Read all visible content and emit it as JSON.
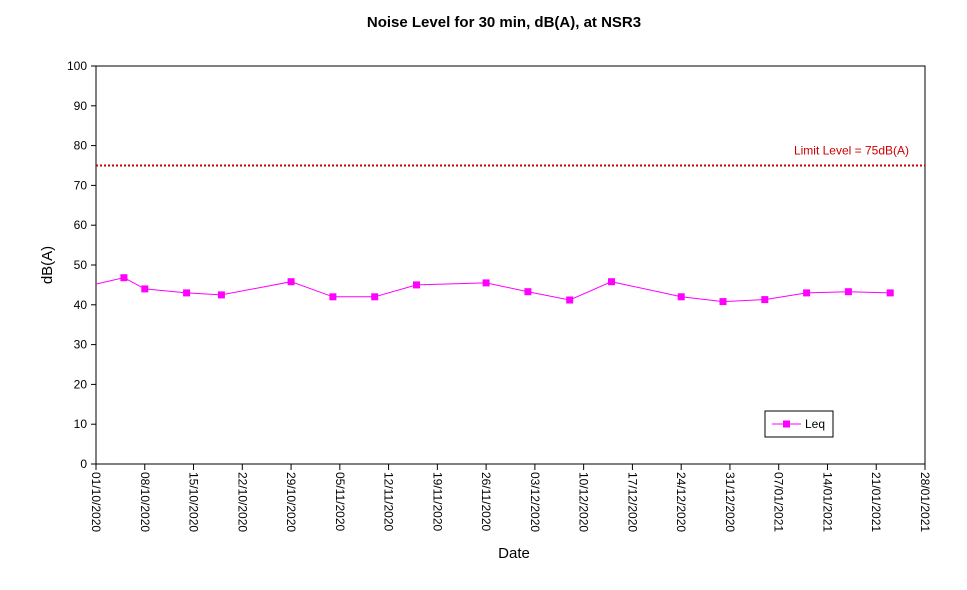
{
  "chart_data": {
    "type": "line",
    "title": "Noise Level for 30 min, dB(A), at NSR3",
    "xlabel": "Date",
    "ylabel": "dB(A)",
    "ylim": [
      0,
      100
    ],
    "yticks": [
      0,
      10,
      20,
      30,
      40,
      50,
      60,
      70,
      80,
      90,
      100
    ],
    "xlim": [
      "2020-10-01",
      "2021-01-28"
    ],
    "xtick_labels": [
      "01/10/2020",
      "08/10/2020",
      "15/10/2020",
      "22/10/2020",
      "29/10/2020",
      "05/11/2020",
      "12/11/2020",
      "19/11/2020",
      "26/11/2020",
      "03/12/2020",
      "10/12/2020",
      "17/12/2020",
      "24/12/2020",
      "31/12/2020",
      "07/01/2021",
      "14/01/2021",
      "21/01/2021",
      "28/01/2021"
    ],
    "grid": false,
    "legend": {
      "placement": "bottom-right"
    },
    "series": [
      {
        "name": "Leq",
        "color": "#ff00ff",
        "marker": "square",
        "points": [
          {
            "x": "2020-10-05",
            "y": 46.8
          },
          {
            "x": "2020-10-08",
            "y": 44.0
          },
          {
            "x": "2020-10-14",
            "y": 43.0
          },
          {
            "x": "2020-10-19",
            "y": 42.5
          },
          {
            "x": "2020-10-29",
            "y": 45.8
          },
          {
            "x": "2020-11-04",
            "y": 42.0
          },
          {
            "x": "2020-11-10",
            "y": 42.0
          },
          {
            "x": "2020-11-16",
            "y": 45.0
          },
          {
            "x": "2020-11-26",
            "y": 45.5
          },
          {
            "x": "2020-12-02",
            "y": 43.3
          },
          {
            "x": "2020-12-08",
            "y": 41.2
          },
          {
            "x": "2020-12-14",
            "y": 45.8
          },
          {
            "x": "2020-12-24",
            "y": 42.0
          },
          {
            "x": "2020-12-30",
            "y": 40.8
          },
          {
            "x": "2021-01-05",
            "y": 41.3
          },
          {
            "x": "2021-01-11",
            "y": 43.0
          },
          {
            "x": "2021-01-17",
            "y": 43.3
          },
          {
            "x": "2021-01-23",
            "y": 43.0
          }
        ]
      }
    ],
    "start_value": 45.2,
    "limit": {
      "value": 75,
      "label": "Limit Level  = 75dB(A)",
      "color": "#cc0000",
      "style": "dotted"
    }
  }
}
